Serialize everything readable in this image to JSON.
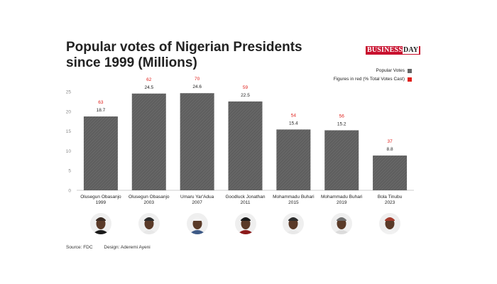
{
  "title": "Popular votes of Nigerian Presidents since 1999 (Millions)",
  "brand": {
    "main": "BUSINESS",
    "day": "DAY"
  },
  "legend": [
    {
      "label": "Popular Votes",
      "color": "#666666"
    },
    {
      "label": "Figures in red (% Total Votes Cast)",
      "color": "#e0201b"
    }
  ],
  "chart_data": {
    "type": "bar",
    "title": "Popular votes of Nigerian Presidents since 1999 (Millions)",
    "categories": [
      [
        "Olusegun Obasanjo",
        "1999"
      ],
      [
        "Olusegun Obasanjo",
        "2003"
      ],
      [
        "Umaru Yar'Adua",
        "2007"
      ],
      [
        "Goodluck Jonathan",
        "2011"
      ],
      [
        "Mohammadu Buhari",
        "2015"
      ],
      [
        "Mohammadu Buhari",
        "2019"
      ],
      [
        "Bola Tinubu",
        "2023"
      ]
    ],
    "series": [
      {
        "name": "Popular Votes",
        "values": [
          18.7,
          24.5,
          24.6,
          22.5,
          15.4,
          15.2,
          8.8
        ]
      },
      {
        "name": "Figures in red (% Total Votes Cast)",
        "values": [
          63,
          62,
          70,
          59,
          54,
          56,
          37
        ]
      }
    ],
    "yticks": [
      0,
      5,
      10,
      15,
      20,
      25
    ],
    "ylim": [
      0,
      25
    ],
    "xlabel": "",
    "ylabel": "",
    "grid": false,
    "legend_position": "top-right"
  },
  "colors": {
    "bar": "#666666",
    "bar_stripe": "#555555",
    "percent": "#e0201b",
    "axis": "#999999"
  },
  "avatars": [
    {
      "name": "Olusegun Obasanjo",
      "cap": "#3a2a22",
      "top": "#1a1a1a"
    },
    {
      "name": "Olusegun Obasanjo",
      "cap": "#2b2b2b",
      "top": "#e8e8e8"
    },
    {
      "name": "Umaru Yar'Adua",
      "cap": "#f2f2f2",
      "top": "#3e5a86"
    },
    {
      "name": "Goodluck Jonathan",
      "cap": "#1b1b1b",
      "top": "#8c1a1a"
    },
    {
      "name": "Mohammadu Buhari",
      "cap": "#2c2c2c",
      "top": "#e9e9e9"
    },
    {
      "name": "Mohammadu Buhari",
      "cap": "#6e6e6e",
      "top": "#dcdcdc"
    },
    {
      "name": "Bola Tinubu",
      "cap": "#a33a2b",
      "top": "#f1f1f1"
    }
  ],
  "footer": {
    "source": "Source: FDC",
    "design": "Design: Aderemi Ayeni"
  }
}
